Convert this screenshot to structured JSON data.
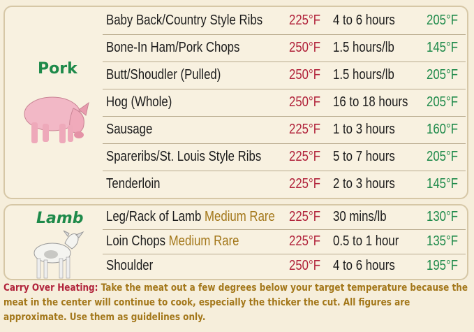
{
  "colors": {
    "background": "#f6eedb",
    "category": "#1e8a4a",
    "smoker_temp": "#b1233b",
    "final_temp": "#1e8a4a",
    "note": "#a3771a"
  },
  "sections": [
    {
      "category": "Pork",
      "icon": "pig-icon",
      "rows": [
        {
          "name": "Baby Back/Country Style Ribs",
          "note": "",
          "smoker_temp": "225°F",
          "time": "4 to 6 hours",
          "final_temp": "205°F"
        },
        {
          "name": "Bone-In Ham/Pork Chops",
          "note": "",
          "smoker_temp": "250°F",
          "time": "1.5 hours/lb",
          "final_temp": "145°F"
        },
        {
          "name": "Butt/Shoudler (Pulled)",
          "note": "",
          "smoker_temp": "250°F",
          "time": "1.5 hours/lb",
          "final_temp": "205°F"
        },
        {
          "name": "Hog (Whole)",
          "note": "",
          "smoker_temp": "250°F",
          "time": "16 to 18 hours",
          "final_temp": "205°F"
        },
        {
          "name": "Sausage",
          "note": "",
          "smoker_temp": "225°F",
          "time": "1 to 3 hours",
          "final_temp": "160°F"
        },
        {
          "name": "Spareribs/St. Louis Style Ribs",
          "note": "",
          "smoker_temp": "225°F",
          "time": "5 to 7 hours",
          "final_temp": "205°F"
        },
        {
          "name": "Tenderloin",
          "note": "",
          "smoker_temp": "225°F",
          "time": "2 to 3 hours",
          "final_temp": "145°F"
        }
      ]
    },
    {
      "category": "Lamb",
      "icon": "lamb-icon",
      "rows": [
        {
          "name": "Leg/Rack of Lamb ",
          "note": "Medium Rare",
          "smoker_temp": "225°F",
          "time": "30 mins/lb",
          "final_temp": "130°F"
        },
        {
          "name": "Loin Chops ",
          "note": "Medium Rare",
          "smoker_temp": "225°F",
          "time": "0.5 to 1 hour",
          "final_temp": "135°F"
        },
        {
          "name": "Shoulder",
          "note": "",
          "smoker_temp": "250°F",
          "time": "4 to 6 hours",
          "final_temp": "195°F"
        }
      ]
    }
  ],
  "footer": {
    "lead": "Carry Over Heating:",
    "text": " Take the meat out a few degrees below your target temperature because the meat in the center will continue to cook, especially the thicker the cut. All figures are approximate. Use them as guidelines only."
  }
}
